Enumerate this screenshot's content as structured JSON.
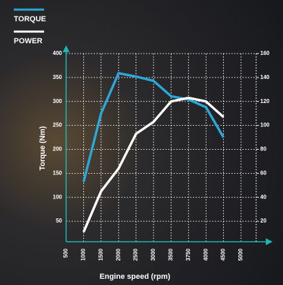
{
  "chart_data": {
    "type": "line",
    "xlabel": "Engine speed (rpm)",
    "ylabel": "Torque (Nm)",
    "categories": [
      "500",
      "1000",
      "1500",
      "2000",
      "2500",
      "3000",
      "3500",
      "3750",
      "4000",
      "4500",
      "5000"
    ],
    "series": [
      {
        "name": "TORQUE",
        "color": "#2aa8d8",
        "values": [
          null,
          132,
          275,
          359,
          352,
          343,
          311,
          304,
          288,
          225,
          null
        ]
      },
      {
        "name": "POWER",
        "color": "#ffffff",
        "axis": "y2",
        "values": [
          null,
          11,
          45,
          64,
          93,
          103,
          120,
          123,
          120,
          107,
          null
        ]
      }
    ],
    "ylim": [
      0,
      400
    ],
    "yticks": [
      50,
      100,
      150,
      200,
      250,
      300,
      350,
      400
    ],
    "y2lim": [
      0,
      160
    ],
    "y2ticks": [
      20,
      40,
      60,
      80,
      100,
      120,
      140,
      160
    ],
    "grid": true
  }
}
